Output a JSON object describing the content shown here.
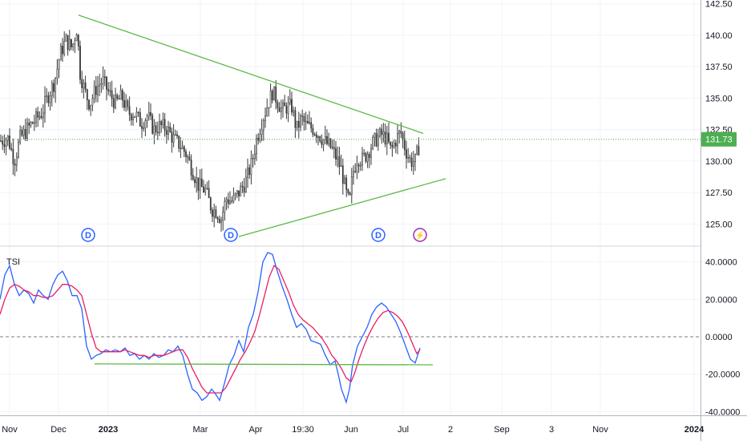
{
  "chart_data": [
    {
      "type": "candlestick",
      "ylim": [
        123.3,
        142.8
      ],
      "y_ticks": [
        "125.00",
        "127.50",
        "130.00",
        "132.50",
        "135.00",
        "137.50",
        "140.00",
        "142.50"
      ],
      "last_price_label": "131.73",
      "last_price": 131.73,
      "close_path": [
        [
          0,
          131.6
        ],
        [
          10,
          131.8
        ],
        [
          18,
          130.0
        ],
        [
          25,
          131.8
        ],
        [
          40,
          133.0
        ],
        [
          52,
          133.8
        ],
        [
          60,
          135.2
        ],
        [
          68,
          136.3
        ],
        [
          75,
          138.5
        ],
        [
          82,
          139.6
        ],
        [
          90,
          139.0
        ],
        [
          96,
          140.6
        ],
        [
          100,
          137.0
        ],
        [
          106,
          135.5
        ],
        [
          112,
          134.5
        ],
        [
          120,
          135.8
        ],
        [
          128,
          136.4
        ],
        [
          136,
          135.4
        ],
        [
          144,
          134.6
        ],
        [
          152,
          135.1
        ],
        [
          160,
          133.8
        ],
        [
          168,
          133.8
        ],
        [
          176,
          133.0
        ],
        [
          184,
          133.6
        ],
        [
          192,
          132.5
        ],
        [
          200,
          132.8
        ],
        [
          208,
          132.6
        ],
        [
          216,
          131.8
        ],
        [
          224,
          131.3
        ],
        [
          232,
          130.6
        ],
        [
          240,
          129.3
        ],
        [
          248,
          128.0
        ],
        [
          256,
          127.7
        ],
        [
          264,
          126.2
        ],
        [
          270,
          126.0
        ],
        [
          276,
          125.4
        ],
        [
          282,
          127.0
        ],
        [
          290,
          126.8
        ],
        [
          298,
          127.5
        ],
        [
          306,
          128.3
        ],
        [
          314,
          129.8
        ],
        [
          320,
          131.7
        ],
        [
          326,
          133.0
        ],
        [
          334,
          134.5
        ],
        [
          340,
          135.5
        ],
        [
          346,
          134.8
        ],
        [
          352,
          134.0
        ],
        [
          358,
          134.3
        ],
        [
          364,
          134.3
        ],
        [
          370,
          132.5
        ],
        [
          376,
          133.4
        ],
        [
          382,
          132.8
        ],
        [
          390,
          132.6
        ],
        [
          398,
          132.1
        ],
        [
          406,
          131.5
        ],
        [
          414,
          131.0
        ],
        [
          420,
          130.2
        ],
        [
          426,
          129.3
        ],
        [
          432,
          127.4
        ],
        [
          436,
          126.6
        ],
        [
          440,
          129.0
        ],
        [
          446,
          130.3
        ],
        [
          452,
          130.1
        ],
        [
          458,
          130.6
        ],
        [
          464,
          131.3
        ],
        [
          470,
          131.8
        ],
        [
          476,
          132.1
        ],
        [
          482,
          131.8
        ],
        [
          488,
          130.8
        ],
        [
          494,
          131.7
        ],
        [
          500,
          132.3
        ],
        [
          506,
          130.9
        ],
        [
          512,
          130.0
        ],
        [
          518,
          130.0
        ],
        [
          524,
          131.5
        ]
      ],
      "trendlines": [
        {
          "from": [
            98,
            141.6
          ],
          "to": [
            528,
            132.2
          ]
        },
        {
          "from": [
            298,
            124.0
          ],
          "to": [
            556,
            128.6
          ]
        }
      ],
      "markers": [
        {
          "type": "dividend",
          "label": "D",
          "x": 110
        },
        {
          "type": "dividend",
          "label": "D",
          "x": 288
        },
        {
          "type": "dividend",
          "label": "D",
          "x": 472
        },
        {
          "type": "earnings",
          "label": "⚡",
          "x": 524
        }
      ],
      "colors": {
        "trendline": "#5cba47",
        "candle": "#333333",
        "last_price": "#4caf50",
        "marker_d": "#2962ff",
        "marker_e": "#9c27b0"
      }
    },
    {
      "type": "line",
      "name": "TSI",
      "ylim": [
        -42,
        48
      ],
      "y_ticks": [
        "40.0000",
        "20.0000",
        "0.0000",
        "-20.0000",
        "-40.0000"
      ],
      "series": [
        {
          "color": "#2962ff",
          "points": [
            [
              0,
              20
            ],
            [
              6,
              33
            ],
            [
              12,
              38
            ],
            [
              18,
              28
            ],
            [
              24,
              22
            ],
            [
              30,
              25
            ],
            [
              36,
              23
            ],
            [
              42,
              18
            ],
            [
              48,
              25
            ],
            [
              54,
              22
            ],
            [
              60,
              20
            ],
            [
              66,
              28
            ],
            [
              72,
              33
            ],
            [
              78,
              35
            ],
            [
              84,
              30
            ],
            [
              90,
              22
            ],
            [
              96,
              22
            ],
            [
              102,
              15
            ],
            [
              108,
              -5
            ],
            [
              114,
              -12
            ],
            [
              120,
              -10
            ],
            [
              126,
              -9
            ],
            [
              132,
              -7
            ],
            [
              138,
              -8
            ],
            [
              144,
              -7
            ],
            [
              150,
              -8
            ],
            [
              156,
              -6
            ],
            [
              162,
              -10
            ],
            [
              168,
              -9
            ],
            [
              174,
              -12
            ],
            [
              180,
              -10
            ],
            [
              186,
              -12
            ],
            [
              192,
              -9
            ],
            [
              198,
              -11
            ],
            [
              204,
              -10
            ],
            [
              210,
              -7
            ],
            [
              216,
              -8
            ],
            [
              222,
              -5
            ],
            [
              228,
              -10
            ],
            [
              234,
              -20
            ],
            [
              240,
              -28
            ],
            [
              246,
              -30
            ],
            [
              252,
              -34
            ],
            [
              258,
              -32
            ],
            [
              264,
              -28
            ],
            [
              268,
              -30
            ],
            [
              274,
              -34
            ],
            [
              280,
              -25
            ],
            [
              286,
              -15
            ],
            [
              292,
              -10
            ],
            [
              298,
              -2
            ],
            [
              304,
              -8
            ],
            [
              310,
              5
            ],
            [
              316,
              12
            ],
            [
              322,
              24
            ],
            [
              328,
              40
            ],
            [
              334,
              45
            ],
            [
              340,
              44
            ],
            [
              346,
              35
            ],
            [
              352,
              27
            ],
            [
              358,
              20
            ],
            [
              364,
              12
            ],
            [
              370,
              5
            ],
            [
              376,
              7
            ],
            [
              382,
              4
            ],
            [
              388,
              -2
            ],
            [
              394,
              -3
            ],
            [
              400,
              -4
            ],
            [
              406,
              -10
            ],
            [
              412,
              -15
            ],
            [
              418,
              -13
            ],
            [
              422,
              -20
            ],
            [
              426,
              -28
            ],
            [
              432,
              -35
            ],
            [
              436,
              -28
            ],
            [
              440,
              -15
            ],
            [
              446,
              -5
            ],
            [
              452,
              0
            ],
            [
              458,
              5
            ],
            [
              464,
              12
            ],
            [
              470,
              16
            ],
            [
              476,
              18
            ],
            [
              482,
              16
            ],
            [
              488,
              12
            ],
            [
              494,
              8
            ],
            [
              500,
              2
            ],
            [
              506,
              -5
            ],
            [
              512,
              -12
            ],
            [
              518,
              -14
            ],
            [
              524,
              -6
            ]
          ]
        },
        {
          "color": "#e91e63",
          "points": [
            [
              0,
              12
            ],
            [
              6,
              20
            ],
            [
              12,
              26
            ],
            [
              18,
              28
            ],
            [
              24,
              27
            ],
            [
              30,
              25
            ],
            [
              36,
              24
            ],
            [
              42,
              22
            ],
            [
              48,
              22
            ],
            [
              54,
              21
            ],
            [
              60,
              21
            ],
            [
              66,
              22
            ],
            [
              72,
              25
            ],
            [
              78,
              28
            ],
            [
              84,
              28
            ],
            [
              90,
              27
            ],
            [
              96,
              25
            ],
            [
              102,
              22
            ],
            [
              108,
              12
            ],
            [
              114,
              2
            ],
            [
              120,
              -6
            ],
            [
              126,
              -8
            ],
            [
              132,
              -8
            ],
            [
              138,
              -8
            ],
            [
              144,
              -8
            ],
            [
              150,
              -8
            ],
            [
              156,
              -7
            ],
            [
              162,
              -8
            ],
            [
              168,
              -9
            ],
            [
              174,
              -10
            ],
            [
              180,
              -10
            ],
            [
              186,
              -11
            ],
            [
              192,
              -10
            ],
            [
              198,
              -10
            ],
            [
              204,
              -10
            ],
            [
              210,
              -9
            ],
            [
              216,
              -8
            ],
            [
              222,
              -7
            ],
            [
              228,
              -7
            ],
            [
              234,
              -11
            ],
            [
              240,
              -17
            ],
            [
              246,
              -22
            ],
            [
              252,
              -27
            ],
            [
              258,
              -30
            ],
            [
              264,
              -30
            ],
            [
              270,
              -30
            ],
            [
              276,
              -30
            ],
            [
              282,
              -27
            ],
            [
              288,
              -22
            ],
            [
              294,
              -17
            ],
            [
              300,
              -12
            ],
            [
              306,
              -8
            ],
            [
              312,
              -3
            ],
            [
              318,
              3
            ],
            [
              324,
              12
            ],
            [
              330,
              22
            ],
            [
              336,
              32
            ],
            [
              342,
              38
            ],
            [
              348,
              36
            ],
            [
              354,
              30
            ],
            [
              360,
              24
            ],
            [
              366,
              17
            ],
            [
              372,
              12
            ],
            [
              378,
              9
            ],
            [
              384,
              7
            ],
            [
              390,
              5
            ],
            [
              396,
              2
            ],
            [
              402,
              -1
            ],
            [
              408,
              -5
            ],
            [
              414,
              -10
            ],
            [
              420,
              -13
            ],
            [
              426,
              -17
            ],
            [
              432,
              -22
            ],
            [
              438,
              -24
            ],
            [
              442,
              -20
            ],
            [
              448,
              -12
            ],
            [
              454,
              -5
            ],
            [
              460,
              1
            ],
            [
              466,
              6
            ],
            [
              472,
              10
            ],
            [
              478,
              13
            ],
            [
              484,
              14
            ],
            [
              490,
              13
            ],
            [
              496,
              11
            ],
            [
              502,
              8
            ],
            [
              508,
              3
            ],
            [
              514,
              -3
            ],
            [
              520,
              -9
            ],
            [
              524,
              -7
            ]
          ]
        }
      ],
      "trendline": {
        "from": [
          118,
          -14.5
        ],
        "to": [
          540,
          -15
        ]
      },
      "zero_line": 0,
      "colors": {
        "trendline": "#5cba47"
      }
    }
  ],
  "indicator_label": "TSI",
  "x_axis": {
    "ticks": [
      {
        "label": "Nov",
        "x": 12
      },
      {
        "label": "Dec",
        "x": 73
      },
      {
        "label": "2023",
        "x": 135,
        "bold": true
      },
      {
        "label": "Mar",
        "x": 250
      },
      {
        "label": "Apr",
        "x": 319
      },
      {
        "label": "19:30",
        "x": 378
      },
      {
        "label": "Jun",
        "x": 438
      },
      {
        "label": "Jul",
        "x": 503
      },
      {
        "label": "2",
        "x": 562
      },
      {
        "label": "Sep",
        "x": 626
      },
      {
        "label": "3",
        "x": 688
      },
      {
        "label": "Nov",
        "x": 749
      },
      {
        "label": "2024",
        "x": 866,
        "bold": true
      }
    ]
  }
}
